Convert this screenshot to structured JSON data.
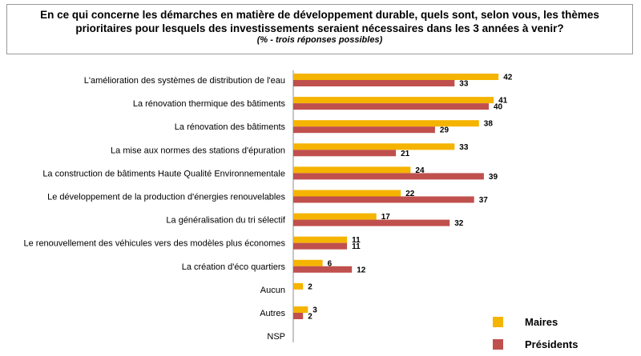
{
  "chart_data": {
    "type": "bar",
    "orientation": "horizontal",
    "title": "En ce qui concerne les démarches en matière de développement durable, quels sont, selon vous, les thèmes prioritaires pour lesquels des investissements seraient nécessaires dans les 3 années à venir?",
    "subtitle": "(% - trois réponses possibles)",
    "categories": [
      "L'amélioration des systèmes de distribution de l'eau",
      "La rénovation thermique des bâtiments",
      "La rénovation des bâtiments",
      "La mise aux normes des stations d'épuration",
      "La construction de bâtiments Haute Qualité Environnementale",
      "Le développement de la production d'énergies renouvelables",
      "La généralisation du tri sélectif",
      "Le renouvellement des véhicules vers des modèles plus économes",
      "La création d'éco quartiers",
      "Aucun",
      "Autres",
      "NSP"
    ],
    "series": [
      {
        "name": "Maires",
        "color": "#f5b400",
        "values": [
          42,
          41,
          38,
          33,
          24,
          22,
          17,
          11,
          6,
          2,
          3,
          null
        ]
      },
      {
        "name": "Présidents",
        "color": "#c0504d",
        "values": [
          33,
          40,
          29,
          21,
          39,
          37,
          32,
          11,
          12,
          null,
          2,
          null
        ]
      }
    ],
    "xlim": [
      0,
      45
    ],
    "legend_position": "bottom-right"
  }
}
